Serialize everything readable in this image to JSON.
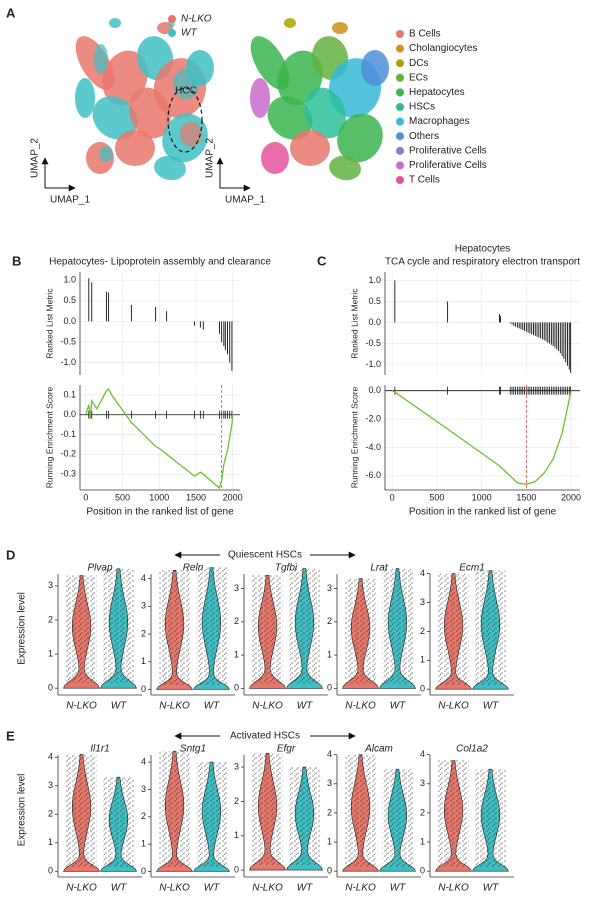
{
  "chart_data": [
    {
      "type": "umap",
      "panel": "A",
      "xlabel": "UMAP_1",
      "ylabel": "UMAP_2",
      "annotation": "HCC",
      "series": [
        {
          "name": "N-LKO",
          "color": "#e8776b"
        },
        {
          "name": "WT",
          "color": "#3fbfc4"
        }
      ]
    },
    {
      "type": "umap",
      "xlabel": "UMAP_1",
      "ylabel": "UMAP_2",
      "series": [
        {
          "name": "B Cells",
          "color": "#e8776b"
        },
        {
          "name": "Cholangiocytes",
          "color": "#cf8f1d"
        },
        {
          "name": "DCs",
          "color": "#a8a400"
        },
        {
          "name": "ECs",
          "color": "#62b23f"
        },
        {
          "name": "Hepatocytes",
          "color": "#3bb54e"
        },
        {
          "name": "HSCs",
          "color": "#2cbf9a"
        },
        {
          "name": "Macrophages",
          "color": "#36b9d6"
        },
        {
          "name": "Others",
          "color": "#4f8fdb"
        },
        {
          "name": "Proliferative Cells",
          "color": "#8d7ccb"
        },
        {
          "name": "Proliferative Cells",
          "color": "#c86bcb"
        },
        {
          "name": "T Cells",
          "color": "#e4539b"
        }
      ]
    },
    {
      "type": "gsea",
      "panel": "B",
      "title": [
        "Hepatocytes- Lipoprotein assembly and clearance"
      ],
      "xlabel": "Position in the ranked list of gene",
      "xlim": [
        -80,
        2100
      ],
      "xticks": [
        0,
        500,
        1000,
        1500,
        2000
      ],
      "vline": 1850,
      "metric": {
        "ylabel": "Ranked List Metric",
        "ylim": [
          -1.3,
          1.2
        ],
        "yticks": [
          {
            "value": 1,
            "label": "1.0"
          },
          0.5,
          {
            "value": 0,
            "label": "0.0"
          },
          -0.5,
          {
            "value": -1,
            "label": "-1.0"
          }
        ],
        "x": [
          40,
          80,
          280,
          310,
          620,
          950,
          1100,
          1480,
          1560,
          1600,
          1820,
          1850,
          1880,
          1900,
          1930,
          1960,
          1990
        ],
        "values": [
          1.05,
          0.95,
          0.72,
          0.7,
          0.4,
          0.35,
          0.25,
          -0.1,
          -0.15,
          -0.2,
          -0.3,
          -0.5,
          -0.6,
          -0.7,
          -0.8,
          -1.0,
          -1.2
        ]
      },
      "enrichment": {
        "ylabel": "Running Enrichment Score",
        "color": "#6cbf2e",
        "ylim": [
          -0.38,
          0.15
        ],
        "yticks": [
          0.1,
          {
            "value": 0,
            "label": "0.0"
          },
          -0.1,
          -0.2,
          -0.3
        ],
        "x": [
          0,
          40,
          60,
          80,
          150,
          280,
          310,
          350,
          620,
          650,
          950,
          1000,
          1100,
          1480,
          1560,
          1600,
          1820,
          1850,
          1880,
          1930,
          1990,
          2000
        ],
        "values": [
          0,
          0.05,
          -0.02,
          0.07,
          0.03,
          0.12,
          0.13,
          0.1,
          -0.04,
          -0.05,
          -0.16,
          -0.17,
          -0.2,
          -0.31,
          -0.29,
          -0.3,
          -0.37,
          -0.33,
          -0.25,
          -0.18,
          -0.05,
          0
        ]
      }
    },
    {
      "type": "gsea",
      "panel": "C",
      "title": [
        "Hepatocytes",
        "TCA  cycle and respiratory electron transport"
      ],
      "xlabel": "Position in the ranked list of gene",
      "xlim": [
        -80,
        2100
      ],
      "xticks": [
        0,
        500,
        1000,
        1500,
        2000
      ],
      "vline": 1500,
      "metric": {
        "ylabel": "Ranked List Metric",
        "ylim": [
          -1.25,
          1.2
        ],
        "yticks": [
          {
            "value": 1,
            "label": "1.0"
          },
          0.5,
          {
            "value": 0,
            "label": "0.0"
          },
          -0.5,
          {
            "value": -1,
            "label": "-1.0"
          }
        ],
        "x": [
          30,
          620,
          1200,
          1210,
          1320,
          1340,
          1360,
          1380,
          1400,
          1420,
          1440,
          1460,
          1480,
          1500,
          1520,
          1540,
          1560,
          1580,
          1600,
          1620,
          1640,
          1660,
          1680,
          1700,
          1720,
          1740,
          1760,
          1780,
          1800,
          1820,
          1840,
          1860,
          1880,
          1900,
          1920,
          1940,
          1960,
          1980,
          1995
        ],
        "values": [
          1.0,
          0.5,
          0.2,
          0.15,
          -0.02,
          -0.05,
          -0.08,
          -0.1,
          -0.12,
          -0.14,
          -0.16,
          -0.18,
          -0.2,
          -0.22,
          -0.24,
          -0.26,
          -0.28,
          -0.3,
          -0.32,
          -0.34,
          -0.36,
          -0.38,
          -0.4,
          -0.42,
          -0.45,
          -0.48,
          -0.5,
          -0.53,
          -0.56,
          -0.6,
          -0.64,
          -0.68,
          -0.73,
          -0.8,
          -0.87,
          -0.95,
          -1.03,
          -1.12,
          -1.2
        ]
      },
      "enrichment": {
        "ylabel": "Running Enrichment Score",
        "color": "#6cbf2e",
        "ylim": [
          -7,
          0.4
        ],
        "yticks": [
          {
            "value": 0,
            "label": "0.0"
          },
          {
            "value": -2,
            "label": "-2.0"
          },
          {
            "value": -4,
            "label": "-4.0"
          },
          {
            "value": -6,
            "label": "-6.0"
          }
        ],
        "x": [
          0,
          30,
          620,
          1200,
          1300,
          1400,
          1500,
          1600,
          1700,
          1800,
          1900,
          1950,
          2000
        ],
        "values": [
          0,
          -0.1,
          -2.7,
          -5.3,
          -5.9,
          -6.5,
          -6.6,
          -6.4,
          -5.8,
          -4.8,
          -3.0,
          -1.5,
          0
        ]
      }
    },
    {
      "type": "violin",
      "panel": "D",
      "title": "Quiescent HSCs",
      "ylabel": "Expression level",
      "categories": [
        "N-LKO",
        "WT"
      ],
      "colors": [
        "#e8776b",
        "#3fbfc4"
      ],
      "genes": [
        {
          "name": "Plvap",
          "ylim": [
            -0.2,
            3.7
          ],
          "yticks": [
            0,
            1,
            2,
            3
          ],
          "values": [
            3.3,
            3.5
          ]
        },
        {
          "name": "Reln",
          "ylim": [
            -0.2,
            4.6
          ],
          "yticks": [
            0,
            1,
            2,
            3,
            4
          ],
          "values": [
            4.3,
            4.4
          ]
        },
        {
          "name": "Tgfbi",
          "ylim": [
            -0.2,
            3.8
          ],
          "yticks": [
            0,
            1,
            2,
            3
          ],
          "values": [
            3.4,
            3.6
          ]
        },
        {
          "name": "Lrat",
          "ylim": [
            -0.2,
            3.8
          ],
          "yticks": [
            0,
            1,
            2,
            3
          ],
          "values": [
            3.3,
            3.6
          ]
        },
        {
          "name": "Ecm1",
          "ylim": [
            -0.2,
            4.4
          ],
          "yticks": [
            0,
            1,
            2,
            3,
            4
          ],
          "values": [
            4.0,
            4.1
          ]
        }
      ]
    },
    {
      "type": "violin",
      "panel": "E",
      "title": "Activated HSCs",
      "ylabel": "Expression level",
      "categories": [
        "N-LKO",
        "WT"
      ],
      "colors": [
        "#e8776b",
        "#3fbfc4"
      ],
      "genes": [
        {
          "name": "Il1r1",
          "ylim": [
            -0.2,
            4.5
          ],
          "yticks": [
            0,
            1,
            2,
            3,
            4
          ],
          "values": [
            4.1,
            3.3
          ]
        },
        {
          "name": "Sntg1",
          "ylim": [
            -0.2,
            4.7
          ],
          "yticks": [
            0,
            1,
            2,
            3,
            4
          ],
          "values": [
            4.4,
            4.0
          ]
        },
        {
          "name": "Efgr",
          "ylim": [
            -0.2,
            3.7
          ],
          "yticks": [
            0,
            1,
            2,
            3
          ],
          "values": [
            3.4,
            3.0
          ]
        },
        {
          "name": "Alcam",
          "ylim": [
            -0.2,
            4.4
          ],
          "yticks": [
            0,
            1,
            2,
            3,
            4
          ],
          "values": [
            4.0,
            3.5
          ]
        },
        {
          "name": "Col1a2",
          "ylim": [
            -0.2,
            4.4
          ],
          "yticks": [
            0,
            1,
            2,
            3,
            4
          ],
          "values": [
            3.8,
            3.5
          ]
        }
      ]
    }
  ]
}
